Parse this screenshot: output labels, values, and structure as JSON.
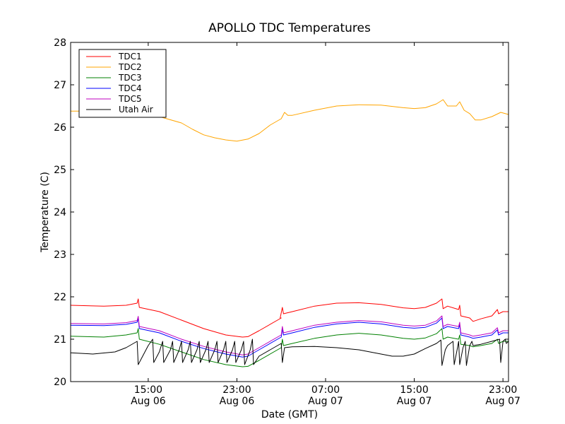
{
  "chart_data": {
    "type": "line",
    "title": "APOLLO TDC Temperatures",
    "xlabel": "Date (GMT)",
    "ylabel": "Temperature (C)",
    "x_unit": "hours since Aug 06 08:00 GMT",
    "xlim": [
      0,
      39.5
    ],
    "ylim": [
      20,
      28
    ],
    "yticks": [
      20,
      21,
      22,
      23,
      24,
      25,
      26,
      27,
      28
    ],
    "xticks": [
      {
        "x": 7,
        "time": "15:00",
        "date": "Aug 06"
      },
      {
        "x": 15,
        "time": "23:00",
        "date": "Aug 06"
      },
      {
        "x": 23,
        "time": "07:00",
        "date": "Aug 07"
      },
      {
        "x": 31,
        "time": "15:00",
        "date": "Aug 07"
      },
      {
        "x": 39,
        "time": "23:00",
        "date": "Aug 07"
      }
    ],
    "grid": false,
    "legend_position": "top-left",
    "series": [
      {
        "name": "TDC1",
        "color": "#ff0000",
        "points": [
          [
            0,
            21.8
          ],
          [
            3,
            21.78
          ],
          [
            5,
            21.8
          ],
          [
            6,
            21.85
          ],
          [
            6.1,
            21.95
          ],
          [
            6.2,
            21.75
          ],
          [
            8,
            21.65
          ],
          [
            10,
            21.45
          ],
          [
            12,
            21.25
          ],
          [
            14,
            21.1
          ],
          [
            15.5,
            21.05
          ],
          [
            16,
            21.06
          ],
          [
            17,
            21.2
          ],
          [
            19,
            21.5
          ],
          [
            18.9,
            21.5
          ],
          [
            19.1,
            21.75
          ],
          [
            19.2,
            21.6
          ],
          [
            20,
            21.65
          ],
          [
            22,
            21.78
          ],
          [
            24,
            21.85
          ],
          [
            26,
            21.86
          ],
          [
            28,
            21.82
          ],
          [
            30,
            21.74
          ],
          [
            31,
            21.72
          ],
          [
            32,
            21.75
          ],
          [
            33,
            21.85
          ],
          [
            33.5,
            21.95
          ],
          [
            33.6,
            21.72
          ],
          [
            34,
            21.78
          ],
          [
            35,
            21.7
          ],
          [
            35.1,
            21.8
          ],
          [
            35.2,
            21.55
          ],
          [
            36,
            21.5
          ],
          [
            36.3,
            21.42
          ],
          [
            37,
            21.48
          ],
          [
            38,
            21.55
          ],
          [
            38.5,
            21.7
          ],
          [
            38.6,
            21.6
          ],
          [
            39,
            21.65
          ],
          [
            39.5,
            21.65
          ]
        ]
      },
      {
        "name": "TDC2",
        "color": "#ffa500",
        "points": [
          [
            0,
            26.38
          ],
          [
            2,
            26.38
          ],
          [
            4,
            26.35
          ],
          [
            6,
            26.35
          ],
          [
            8,
            26.25
          ],
          [
            10,
            26.1
          ],
          [
            11,
            25.95
          ],
          [
            12,
            25.82
          ],
          [
            13,
            25.75
          ],
          [
            14,
            25.7
          ],
          [
            15,
            25.67
          ],
          [
            16,
            25.72
          ],
          [
            17,
            25.85
          ],
          [
            18,
            26.05
          ],
          [
            19,
            26.2
          ],
          [
            19.3,
            26.35
          ],
          [
            19.6,
            26.28
          ],
          [
            20,
            26.28
          ],
          [
            22,
            26.4
          ],
          [
            24,
            26.5
          ],
          [
            26,
            26.53
          ],
          [
            28,
            26.52
          ],
          [
            30,
            26.46
          ],
          [
            31,
            26.44
          ],
          [
            32,
            26.46
          ],
          [
            33,
            26.55
          ],
          [
            33.6,
            26.65
          ],
          [
            34,
            26.5
          ],
          [
            34.8,
            26.5
          ],
          [
            35.1,
            26.6
          ],
          [
            35.5,
            26.4
          ],
          [
            36,
            26.32
          ],
          [
            36.5,
            26.17
          ],
          [
            37,
            26.17
          ],
          [
            38,
            26.25
          ],
          [
            38.8,
            26.35
          ],
          [
            39.5,
            26.3
          ]
        ]
      },
      {
        "name": "TDC3",
        "color": "#008000",
        "points": [
          [
            0,
            21.07
          ],
          [
            3,
            21.05
          ],
          [
            5,
            21.1
          ],
          [
            6,
            21.15
          ],
          [
            6.1,
            21.25
          ],
          [
            6.2,
            21.0
          ],
          [
            8,
            20.88
          ],
          [
            10,
            20.7
          ],
          [
            12,
            20.52
          ],
          [
            14,
            20.4
          ],
          [
            15.5,
            20.35
          ],
          [
            16,
            20.36
          ],
          [
            17,
            20.5
          ],
          [
            19,
            20.8
          ],
          [
            19.1,
            21.0
          ],
          [
            19.2,
            20.85
          ],
          [
            20,
            20.9
          ],
          [
            22,
            21.02
          ],
          [
            24,
            21.1
          ],
          [
            26,
            21.14
          ],
          [
            28,
            21.1
          ],
          [
            30,
            21.02
          ],
          [
            31,
            21.0
          ],
          [
            32,
            21.03
          ],
          [
            33,
            21.13
          ],
          [
            33.5,
            21.25
          ],
          [
            33.6,
            21.0
          ],
          [
            34,
            21.05
          ],
          [
            35,
            21.0
          ],
          [
            35.1,
            21.1
          ],
          [
            35.2,
            20.88
          ],
          [
            36,
            20.85
          ],
          [
            36.3,
            20.82
          ],
          [
            37,
            20.85
          ],
          [
            38,
            20.9
          ],
          [
            38.5,
            21.0
          ],
          [
            38.6,
            20.9
          ],
          [
            39,
            20.95
          ],
          [
            39.5,
            20.95
          ]
        ]
      },
      {
        "name": "TDC4",
        "color": "#0000ff",
        "points": [
          [
            0,
            21.33
          ],
          [
            3,
            21.32
          ],
          [
            5,
            21.35
          ],
          [
            6,
            21.4
          ],
          [
            6.1,
            21.5
          ],
          [
            6.2,
            21.25
          ],
          [
            8,
            21.15
          ],
          [
            10,
            20.95
          ],
          [
            12,
            20.78
          ],
          [
            14,
            20.65
          ],
          [
            15.5,
            20.58
          ],
          [
            16,
            20.6
          ],
          [
            17,
            20.75
          ],
          [
            19,
            21.05
          ],
          [
            19.1,
            21.25
          ],
          [
            19.2,
            21.1
          ],
          [
            20,
            21.15
          ],
          [
            22,
            21.28
          ],
          [
            24,
            21.36
          ],
          [
            26,
            21.4
          ],
          [
            28,
            21.36
          ],
          [
            30,
            21.28
          ],
          [
            31,
            21.26
          ],
          [
            32,
            21.28
          ],
          [
            33,
            21.38
          ],
          [
            33.5,
            21.5
          ],
          [
            33.6,
            21.25
          ],
          [
            34,
            21.3
          ],
          [
            35,
            21.25
          ],
          [
            35.1,
            21.35
          ],
          [
            35.2,
            21.1
          ],
          [
            36,
            21.05
          ],
          [
            36.3,
            21.02
          ],
          [
            37,
            21.05
          ],
          [
            38,
            21.1
          ],
          [
            38.5,
            21.22
          ],
          [
            38.6,
            21.1
          ],
          [
            39,
            21.15
          ],
          [
            39.5,
            21.15
          ]
        ]
      },
      {
        "name": "TDC5",
        "color": "#bf00bf",
        "points": [
          [
            0,
            21.37
          ],
          [
            3,
            21.36
          ],
          [
            5,
            21.39
          ],
          [
            6,
            21.44
          ],
          [
            6.1,
            21.54
          ],
          [
            6.2,
            21.3
          ],
          [
            8,
            21.2
          ],
          [
            10,
            21.0
          ],
          [
            12,
            20.83
          ],
          [
            14,
            20.7
          ],
          [
            15.5,
            20.63
          ],
          [
            16,
            20.65
          ],
          [
            17,
            20.8
          ],
          [
            19,
            21.1
          ],
          [
            19.1,
            21.3
          ],
          [
            19.2,
            21.15
          ],
          [
            20,
            21.2
          ],
          [
            22,
            21.33
          ],
          [
            24,
            21.4
          ],
          [
            26,
            21.44
          ],
          [
            28,
            21.41
          ],
          [
            30,
            21.33
          ],
          [
            31,
            21.31
          ],
          [
            32,
            21.33
          ],
          [
            33,
            21.43
          ],
          [
            33.5,
            21.55
          ],
          [
            33.6,
            21.3
          ],
          [
            34,
            21.35
          ],
          [
            35,
            21.3
          ],
          [
            35.1,
            21.4
          ],
          [
            35.2,
            21.15
          ],
          [
            36,
            21.1
          ],
          [
            36.3,
            21.07
          ],
          [
            37,
            21.1
          ],
          [
            38,
            21.15
          ],
          [
            38.5,
            21.27
          ],
          [
            38.6,
            21.15
          ],
          [
            39,
            21.2
          ],
          [
            39.5,
            21.2
          ]
        ]
      },
      {
        "name": "Utah Air",
        "color": "#000000",
        "points": [
          [
            0,
            20.68
          ],
          [
            2,
            20.65
          ],
          [
            4,
            20.7
          ],
          [
            5,
            20.8
          ],
          [
            6,
            20.95
          ],
          [
            6.1,
            20.4
          ],
          [
            6.5,
            20.6
          ],
          [
            7,
            20.85
          ],
          [
            7.4,
            21.0
          ],
          [
            7.5,
            20.45
          ],
          [
            8,
            20.7
          ],
          [
            8.3,
            20.95
          ],
          [
            8.4,
            20.45
          ],
          [
            9,
            20.75
          ],
          [
            9.2,
            20.95
          ],
          [
            9.3,
            20.45
          ],
          [
            9.8,
            20.75
          ],
          [
            10,
            20.95
          ],
          [
            10.1,
            20.45
          ],
          [
            10.6,
            20.75
          ],
          [
            10.8,
            20.95
          ],
          [
            10.9,
            20.45
          ],
          [
            11.4,
            20.75
          ],
          [
            11.6,
            20.95
          ],
          [
            11.7,
            20.45
          ],
          [
            12.2,
            20.75
          ],
          [
            12.4,
            20.95
          ],
          [
            12.5,
            20.45
          ],
          [
            13,
            20.75
          ],
          [
            13.2,
            20.95
          ],
          [
            13.3,
            20.45
          ],
          [
            13.8,
            20.75
          ],
          [
            14,
            20.95
          ],
          [
            14.1,
            20.45
          ],
          [
            14.6,
            20.75
          ],
          [
            14.8,
            20.95
          ],
          [
            14.9,
            20.45
          ],
          [
            15.4,
            20.75
          ],
          [
            15.6,
            20.95
          ],
          [
            15.7,
            20.4
          ],
          [
            16.2,
            20.75
          ],
          [
            16.4,
            21.0
          ],
          [
            16.5,
            20.4
          ],
          [
            17,
            20.6
          ],
          [
            18,
            20.75
          ],
          [
            19,
            20.9
          ],
          [
            19.1,
            20.45
          ],
          [
            19.3,
            20.8
          ],
          [
            20,
            20.82
          ],
          [
            22,
            20.83
          ],
          [
            24,
            20.8
          ],
          [
            26,
            20.75
          ],
          [
            28,
            20.65
          ],
          [
            29,
            20.6
          ],
          [
            30,
            20.6
          ],
          [
            31,
            20.65
          ],
          [
            32,
            20.78
          ],
          [
            33,
            20.9
          ],
          [
            33.4,
            20.98
          ],
          [
            33.5,
            20.38
          ],
          [
            33.8,
            20.75
          ],
          [
            34,
            20.85
          ],
          [
            34.5,
            20.95
          ],
          [
            34.6,
            20.4
          ],
          [
            34.9,
            20.8
          ],
          [
            35,
            20.95
          ],
          [
            35.1,
            20.4
          ],
          [
            35.4,
            20.8
          ],
          [
            35.6,
            20.95
          ],
          [
            35.7,
            20.38
          ],
          [
            36,
            20.85
          ],
          [
            36.2,
            20.95
          ],
          [
            36.3,
            20.85
          ],
          [
            37,
            20.88
          ],
          [
            38,
            20.95
          ],
          [
            38.7,
            21.0
          ],
          [
            38.8,
            20.45
          ],
          [
            39,
            20.95
          ],
          [
            39.2,
            21.0
          ],
          [
            39.3,
            20.9
          ],
          [
            39.5,
            20.95
          ]
        ]
      }
    ]
  }
}
